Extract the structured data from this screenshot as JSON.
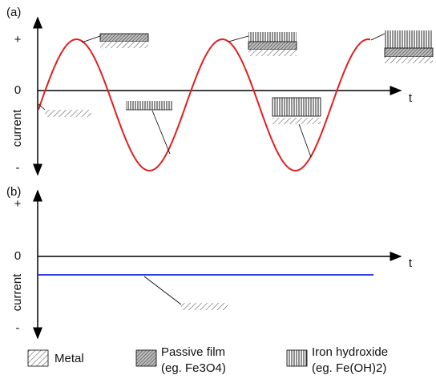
{
  "panel_a": {
    "label": "(a)",
    "plus": "+",
    "zero": "0",
    "minus": "-",
    "x_label": "t",
    "y_label": "current"
  },
  "panel_b": {
    "label": "(b)",
    "plus": "+",
    "zero": "0",
    "minus": "-",
    "x_label": "t",
    "y_label": "current"
  },
  "legend": [
    {
      "label": "Metal"
    },
    {
      "label": "Passive film",
      "example": "(eg. Fe3O4)"
    },
    {
      "label": "Iron hydroxide",
      "example": "(eg. Fe(OH)2)"
    }
  ]
}
